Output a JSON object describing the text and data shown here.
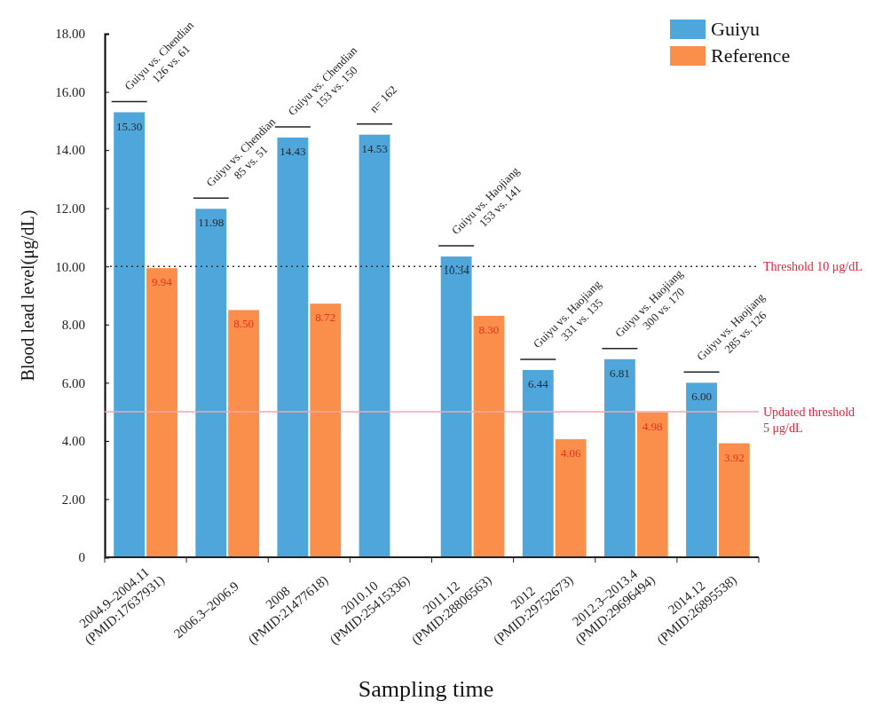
{
  "chart_data": {
    "type": "bar",
    "xlabel": "Sampling time",
    "ylabel": "Blood lead level(μg/dL)",
    "categories": [
      "2004.9–2004.11\n(PMID:17637931)",
      "2006.3–2006.9",
      "2008\n(PMID:21477618)",
      "2010.10\n(PMID:25415336)",
      "2011.12\n(PMID:28806563)",
      "2012\n(PMID:29752673)",
      "2012.3–2013.4\n(PMID:29696494)",
      "2014.12\n(PMID:26895538)"
    ],
    "series": [
      {
        "name": "Guiyu",
        "color": "#4fa6da",
        "values": [
          15.3,
          11.98,
          14.43,
          14.53,
          10.34,
          6.44,
          6.81,
          6.0
        ],
        "value_labels": [
          "15.30",
          "11.98",
          "14.43",
          "14.53",
          "10.34",
          "6.44",
          "6.81",
          "6.00"
        ]
      },
      {
        "name": "Reference",
        "color": "#fa8f4b",
        "values": [
          9.94,
          8.5,
          8.72,
          null,
          8.3,
          4.06,
          4.98,
          3.92
        ],
        "value_labels": [
          "9.94",
          "8.50",
          "8.72",
          null,
          "8.30",
          "4.06",
          "4.98",
          "3.92"
        ]
      }
    ],
    "ylim": [
      0,
      18
    ],
    "yticks": [
      0,
      {
        "value": 2,
        "label": "2.00"
      },
      {
        "value": 4,
        "label": "4.00"
      },
      {
        "value": 6,
        "label": "6.00"
      },
      {
        "value": 8,
        "label": "8.00"
      },
      {
        "value": 10,
        "label": "10.00"
      },
      {
        "value": 12,
        "label": "12.00"
      },
      {
        "value": 14,
        "label": "14.00"
      },
      {
        "value": 16,
        "label": "16.00"
      },
      {
        "value": 18,
        "label": "18.00"
      }
    ],
    "legend": "top right",
    "grid": false,
    "ref_lines": [
      {
        "axis": "y",
        "value": 10,
        "label": "Threshold 10 μg/dL",
        "color": "#333333",
        "line_style": "dotted"
      },
      {
        "axis": "y",
        "value": 5,
        "label": "Updated threshold\n5 μg/dL",
        "color": "#f4a6b0",
        "line_style": "solid"
      }
    ],
    "annotations": [
      "Guiyu vs. Chendian\n126 vs. 61",
      "Guiyu vs. Chendian\n85 vs. 51",
      "Guiyu vs. Chendian\n153 vs. 150",
      "n= 162",
      "Guiyu vs. Haojiang\n153 vs. 141",
      "Guiyu vs. Haojiang\n331 vs. 135",
      "Guiyu vs. Haojiang\n300 vs. 170",
      "Guiyu vs. Haojiang\n285 vs. 126"
    ]
  }
}
